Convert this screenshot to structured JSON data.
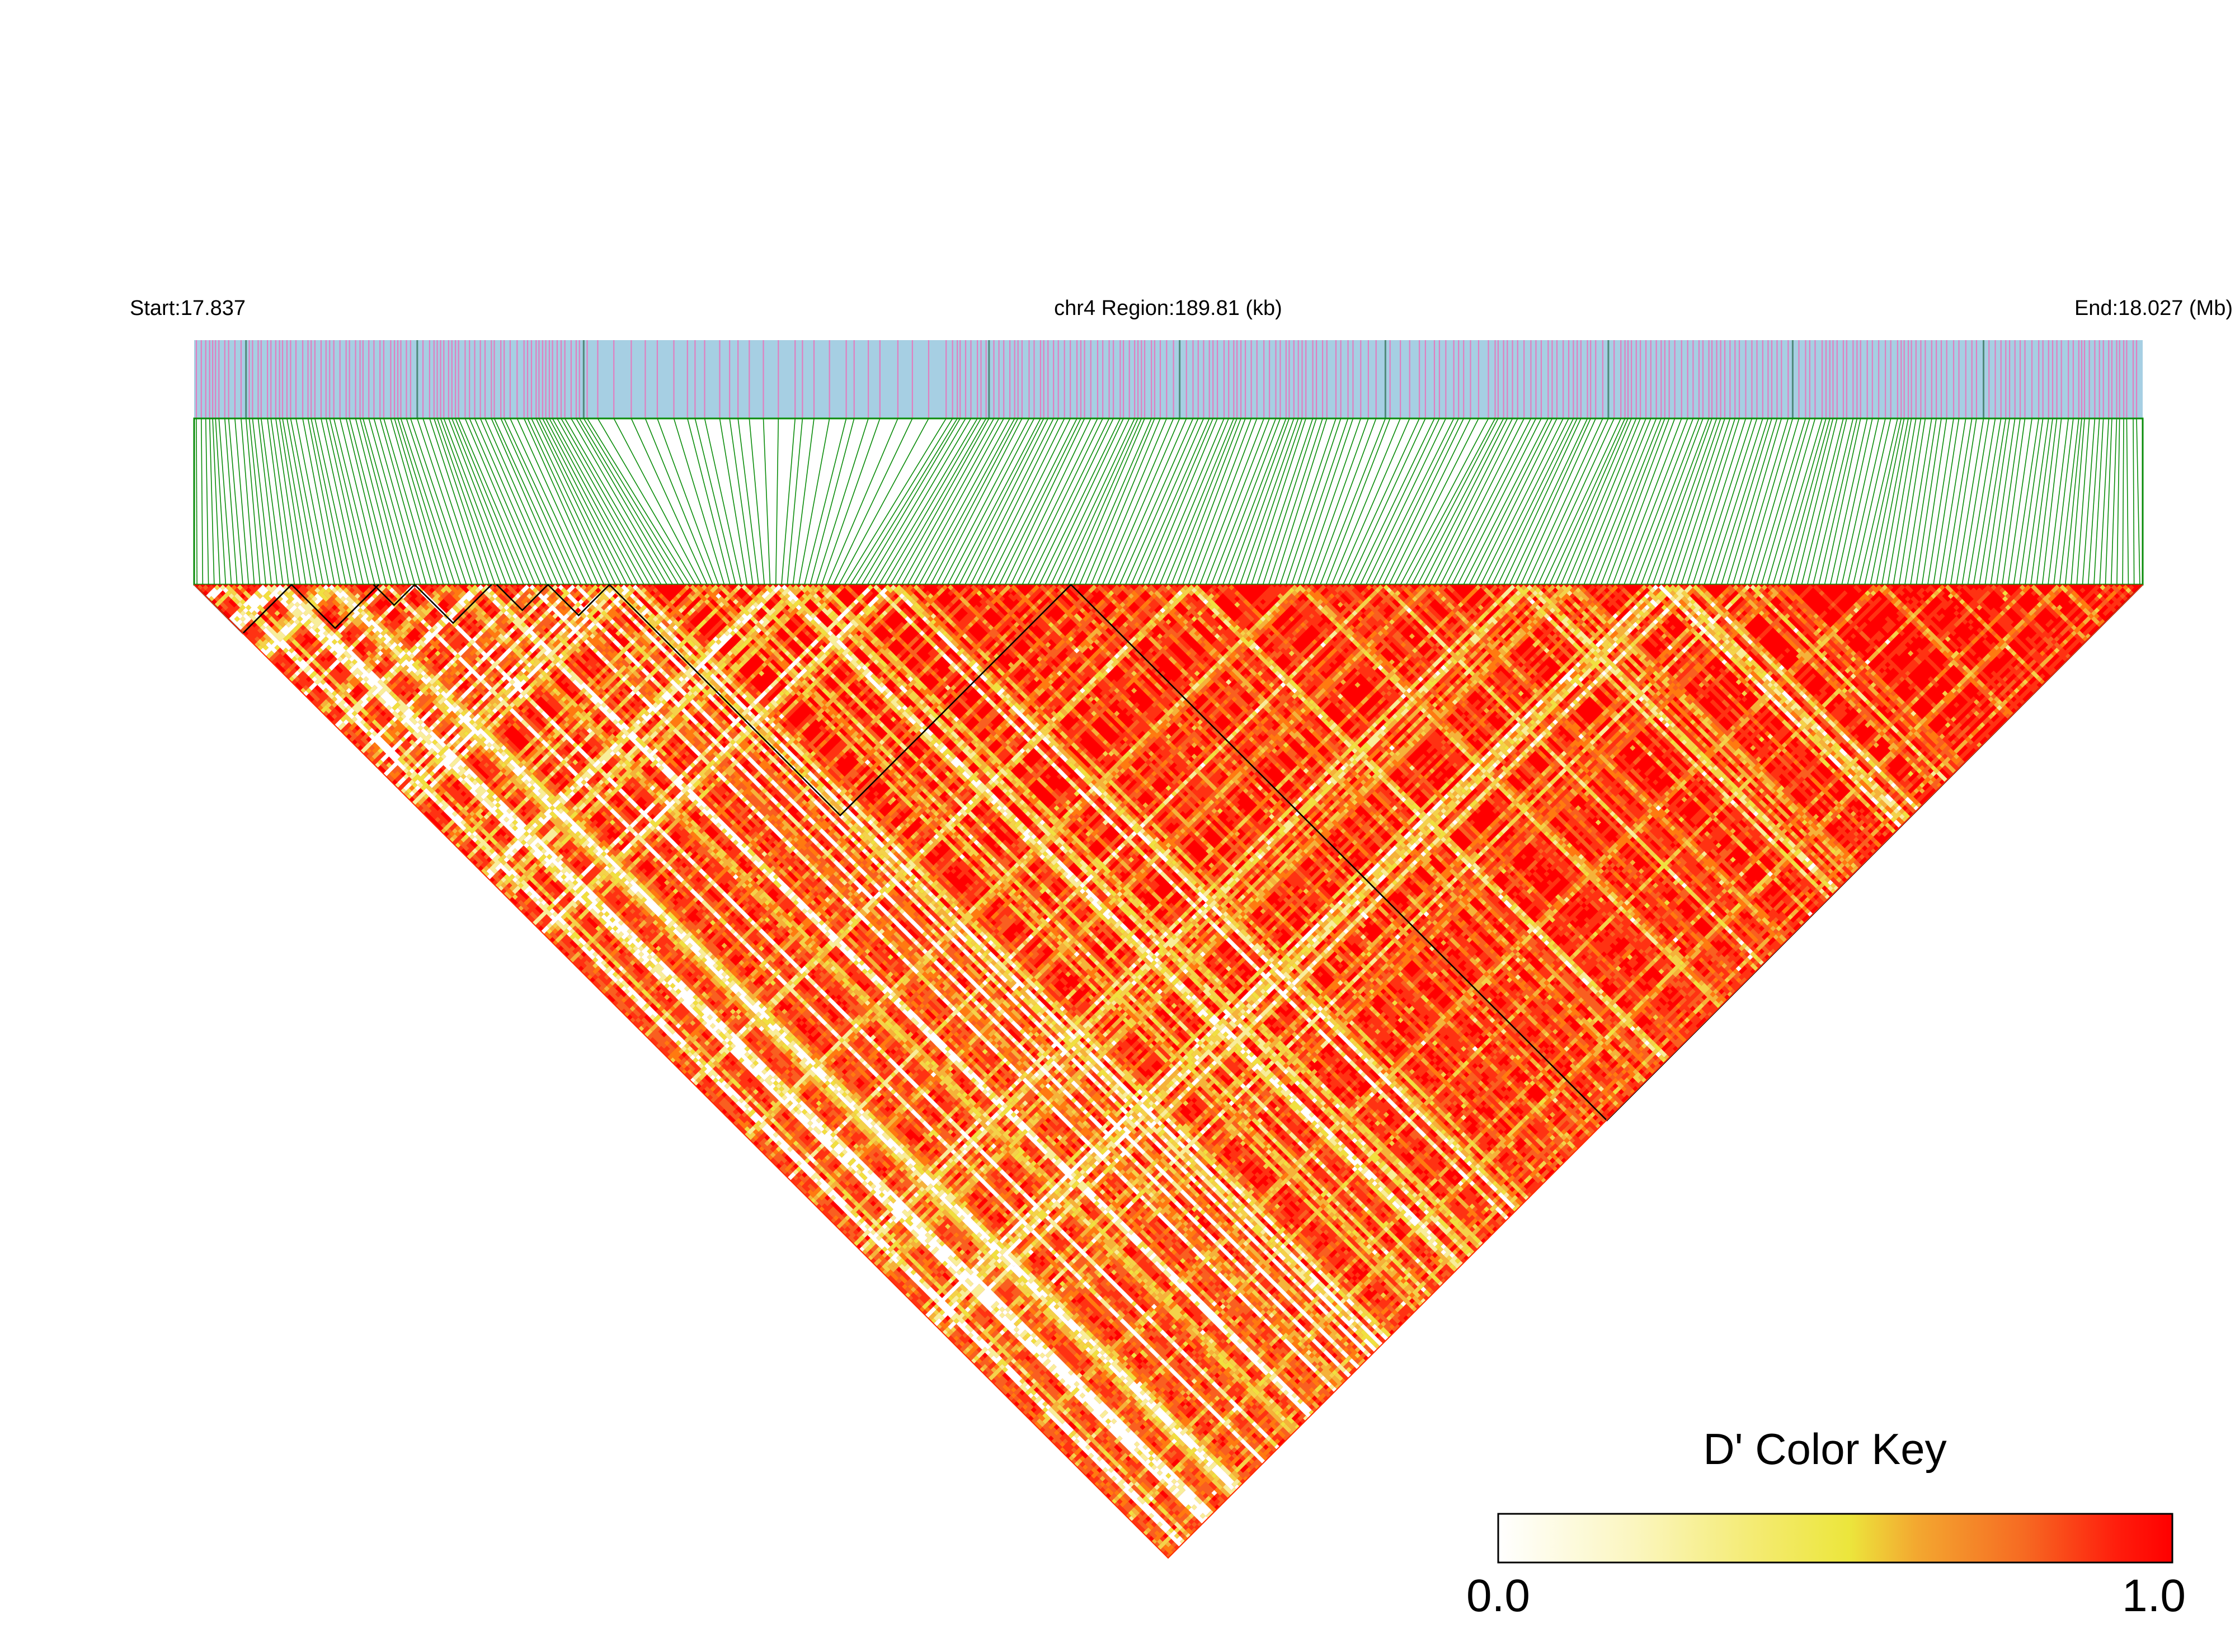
{
  "chart_data": {
    "type": "heatmap",
    "chromosome": "chr4",
    "region_label": "chr4 Region:189.81 (kb)",
    "start_label": "Start:17.837",
    "end_label": "End:18.027 (Mb)",
    "region_kb": 189.81,
    "start_mb": 17.837,
    "end_mb": 18.027,
    "colors": {
      "track_background": "#a6cfe3",
      "snp_marker": "#e07fc0",
      "dense_marker": "#4f8a7a",
      "connector": "#0a8c0a",
      "ld_high": "#ff0000",
      "ld_mid": "#ff7a10",
      "ld_low": "#f0e040",
      "ld_none": "#ffffff",
      "block_outline": "#000000"
    },
    "ld_blocks_mb": [
      [
        17.837,
        17.8465
      ],
      [
        17.8465,
        17.855
      ],
      [
        17.8545,
        17.8585
      ],
      [
        17.8585,
        17.866
      ],
      [
        17.8665,
        17.8715
      ],
      [
        17.8715,
        17.8775
      ],
      [
        17.8775,
        17.9225
      ],
      [
        17.9225,
        18.0275
      ]
    ],
    "color_key": {
      "title": "D' Color Key",
      "min_label": "0.0",
      "max_label": "1.0",
      "range": [
        0.0,
        1.0
      ],
      "stops": [
        "#ffffff",
        "#fbf6c0",
        "#f3ea6a",
        "#ece63c",
        "#f3a830",
        "#f66a22",
        "#ff1c0c",
        "#ff0000"
      ]
    }
  }
}
